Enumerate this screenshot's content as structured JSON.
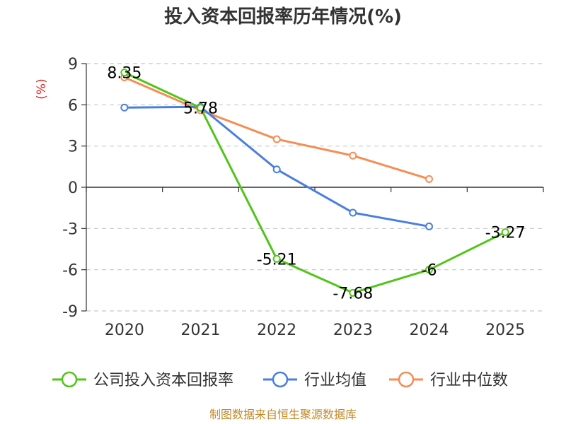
{
  "chart_data": {
    "type": "line",
    "title": "投入资本回报率历年情况(%)",
    "ylabel": "(%)",
    "xlabel": "",
    "categories": [
      "2020",
      "2021",
      "2022",
      "2023",
      "2024",
      "2025"
    ],
    "ylim": [
      -9,
      9
    ],
    "yticks": [
      9,
      6,
      3,
      0,
      -3,
      -6,
      -9
    ],
    "grid": true,
    "legend_position": "bottom",
    "series": [
      {
        "name": "公司投入资本回报率",
        "color": "#52c41a",
        "values": [
          8.35,
          5.78,
          -5.21,
          -7.68,
          -6,
          -3.27
        ],
        "labels": [
          "8.35",
          "5.78",
          "-5.21",
          "-7.68",
          "-6",
          "-3.27"
        ]
      },
      {
        "name": "行业均值",
        "color": "#4a7ee0",
        "values": [
          5.8,
          5.85,
          1.3,
          -1.85,
          -2.85,
          null
        ]
      },
      {
        "name": "行业中位数",
        "color": "#f58d55",
        "values": [
          8.0,
          5.6,
          3.5,
          2.3,
          0.6,
          null
        ]
      }
    ]
  },
  "source": "制图数据来自恒生聚源数据库"
}
